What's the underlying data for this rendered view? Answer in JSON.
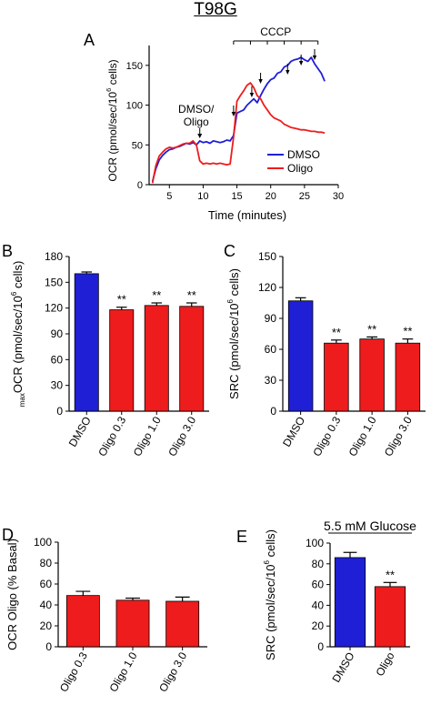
{
  "figure_title": "T98G",
  "colors": {
    "dmso": "#1f1fd6",
    "oligo": "#ee1c1c",
    "axis": "#000000"
  },
  "chart_data": [
    {
      "id": "A",
      "panel_label": "A",
      "type": "line",
      "title": "",
      "xlabel": "Time (minutes)",
      "ylabel": "OCR (pmol/sec/10^6 cells)",
      "ylabel_parts": {
        "pre": "OCR (pmol/sec/10",
        "sup": "6",
        "post": " cells)"
      },
      "xlim": [
        2,
        30
      ],
      "ylim": [
        0,
        175
      ],
      "xticks": [
        5,
        10,
        15,
        20,
        25,
        30
      ],
      "yticks": [
        0,
        50,
        100,
        150
      ],
      "legend": {
        "placement": "bottom-right",
        "entries": [
          "DMSO",
          "Oligo"
        ]
      },
      "annotations": {
        "injection_label_lines": [
          "DMSO/",
          "Oligo"
        ],
        "injection_time": 9.5,
        "bracket_label": "CCCP",
        "bracket_range": [
          14.5,
          27
        ],
        "arrow_times": [
          14.5,
          17.2,
          18.5,
          22.5,
          24.5,
          26.5
        ]
      },
      "series": [
        {
          "name": "DMSO",
          "x": [
            2.5,
            3,
            3.5,
            4,
            4.5,
            5,
            5.5,
            6,
            6.5,
            7,
            7.5,
            8,
            8.5,
            9,
            9.5,
            10,
            10.5,
            11,
            11.5,
            12,
            12.5,
            13,
            13.5,
            14,
            14.5,
            15,
            15.5,
            16,
            16.5,
            17,
            17.5,
            18,
            18.5,
            19,
            19.5,
            20,
            20.5,
            21,
            21.5,
            22,
            22.5,
            23,
            23.5,
            24,
            24.5,
            25,
            25.5,
            26,
            26.5,
            27,
            27.5,
            28
          ],
          "values": [
            4,
            20,
            31,
            37,
            41,
            44,
            45,
            47,
            48,
            50,
            52,
            51,
            53,
            50,
            55,
            53,
            54,
            52,
            55,
            54,
            53,
            54,
            56,
            55,
            62,
            90,
            92,
            94,
            100,
            104,
            108,
            103,
            112,
            120,
            127,
            132,
            134,
            140,
            142,
            148,
            150,
            155,
            157,
            158,
            160,
            157,
            155,
            160,
            152,
            146,
            140,
            130
          ]
        },
        {
          "name": "Oligo",
          "x": [
            2.5,
            3,
            3.5,
            4,
            4.5,
            5,
            5.5,
            6,
            6.5,
            7,
            7.5,
            8,
            8.5,
            9,
            9.5,
            10,
            10.5,
            11,
            11.5,
            12,
            12.5,
            13,
            13.5,
            14,
            14.5,
            15,
            15.5,
            16,
            16.5,
            17,
            17.5,
            18,
            18.5,
            19,
            19.5,
            20,
            20.5,
            21,
            21.5,
            22,
            22.5,
            23,
            23.5,
            24,
            24.5,
            25,
            25.5,
            26,
            26.5,
            27,
            27.5,
            28
          ],
          "values": [
            2,
            24,
            36,
            41,
            45,
            47,
            46,
            47,
            49,
            51,
            52,
            52,
            55,
            50,
            30,
            26,
            27,
            26,
            27,
            26,
            27,
            26,
            25,
            26,
            60,
            105,
            112,
            118,
            125,
            128,
            122,
            112,
            108,
            100,
            94,
            88,
            84,
            82,
            80,
            76,
            74,
            72,
            71,
            70,
            69,
            69,
            68,
            67,
            67,
            66,
            66,
            65
          ]
        }
      ]
    },
    {
      "id": "B",
      "panel_label": "B",
      "type": "bar",
      "title": "",
      "ylabel_parts": {
        "sub": "max",
        "pre": "OCR (pmol/sec/10",
        "sup": "6",
        "post": " cells)"
      },
      "categories": [
        "DMSO",
        "Oligo 0.3",
        "Oligo 1.0",
        "Oligo 3.0"
      ],
      "values": [
        160,
        118,
        123,
        122
      ],
      "errors": [
        2,
        3,
        3,
        4
      ],
      "bar_colors": [
        "#1f1fd6",
        "#ee1c1c",
        "#ee1c1c",
        "#ee1c1c"
      ],
      "significance": [
        "",
        "**",
        "**",
        "**"
      ],
      "ylim": [
        0,
        180
      ],
      "yticks": [
        0,
        30,
        60,
        90,
        120,
        150,
        180
      ]
    },
    {
      "id": "C",
      "panel_label": "C",
      "type": "bar",
      "title": "",
      "ylabel_parts": {
        "pre": "SRC (pmol/sec/10",
        "sup": "6",
        "post": " cells)"
      },
      "categories": [
        "DMSO",
        "Oligo 0.3",
        "Oligo 1.0",
        "Oligo 3.0"
      ],
      "values": [
        107,
        66,
        70,
        66
      ],
      "errors": [
        3,
        3,
        2,
        4
      ],
      "bar_colors": [
        "#1f1fd6",
        "#ee1c1c",
        "#ee1c1c",
        "#ee1c1c"
      ],
      "significance": [
        "",
        "**",
        "**",
        "**"
      ],
      "ylim": [
        0,
        150
      ],
      "yticks": [
        0,
        30,
        60,
        90,
        120,
        150
      ]
    },
    {
      "id": "D",
      "panel_label": "D",
      "type": "bar",
      "title": "",
      "ylabel_parts": {
        "pre": "OCR Oligo (% Basal)"
      },
      "categories": [
        "Oligo 0.3",
        "Oligo 1.0",
        "Oligo 3.0"
      ],
      "values": [
        49,
        44.5,
        43.5
      ],
      "errors": [
        4,
        2,
        4
      ],
      "bar_colors": [
        "#ee1c1c",
        "#ee1c1c",
        "#ee1c1c"
      ],
      "significance": [
        "",
        "",
        ""
      ],
      "ylim": [
        0,
        100
      ],
      "yticks": [
        0,
        20,
        40,
        60,
        80,
        100
      ]
    },
    {
      "id": "E",
      "panel_label": "E",
      "type": "bar",
      "title": "5.5 mM Glucose",
      "ylabel_parts": {
        "pre": "SRC (pmol/sec/10",
        "sup": "6",
        "post": " cells)"
      },
      "categories": [
        "DMSO",
        "Oligo"
      ],
      "values": [
        86,
        58
      ],
      "errors": [
        5,
        4
      ],
      "bar_colors": [
        "#1f1fd6",
        "#ee1c1c"
      ],
      "significance": [
        "",
        "**"
      ],
      "ylim": [
        0,
        100
      ],
      "yticks": [
        0,
        20,
        40,
        60,
        80,
        100
      ]
    }
  ]
}
